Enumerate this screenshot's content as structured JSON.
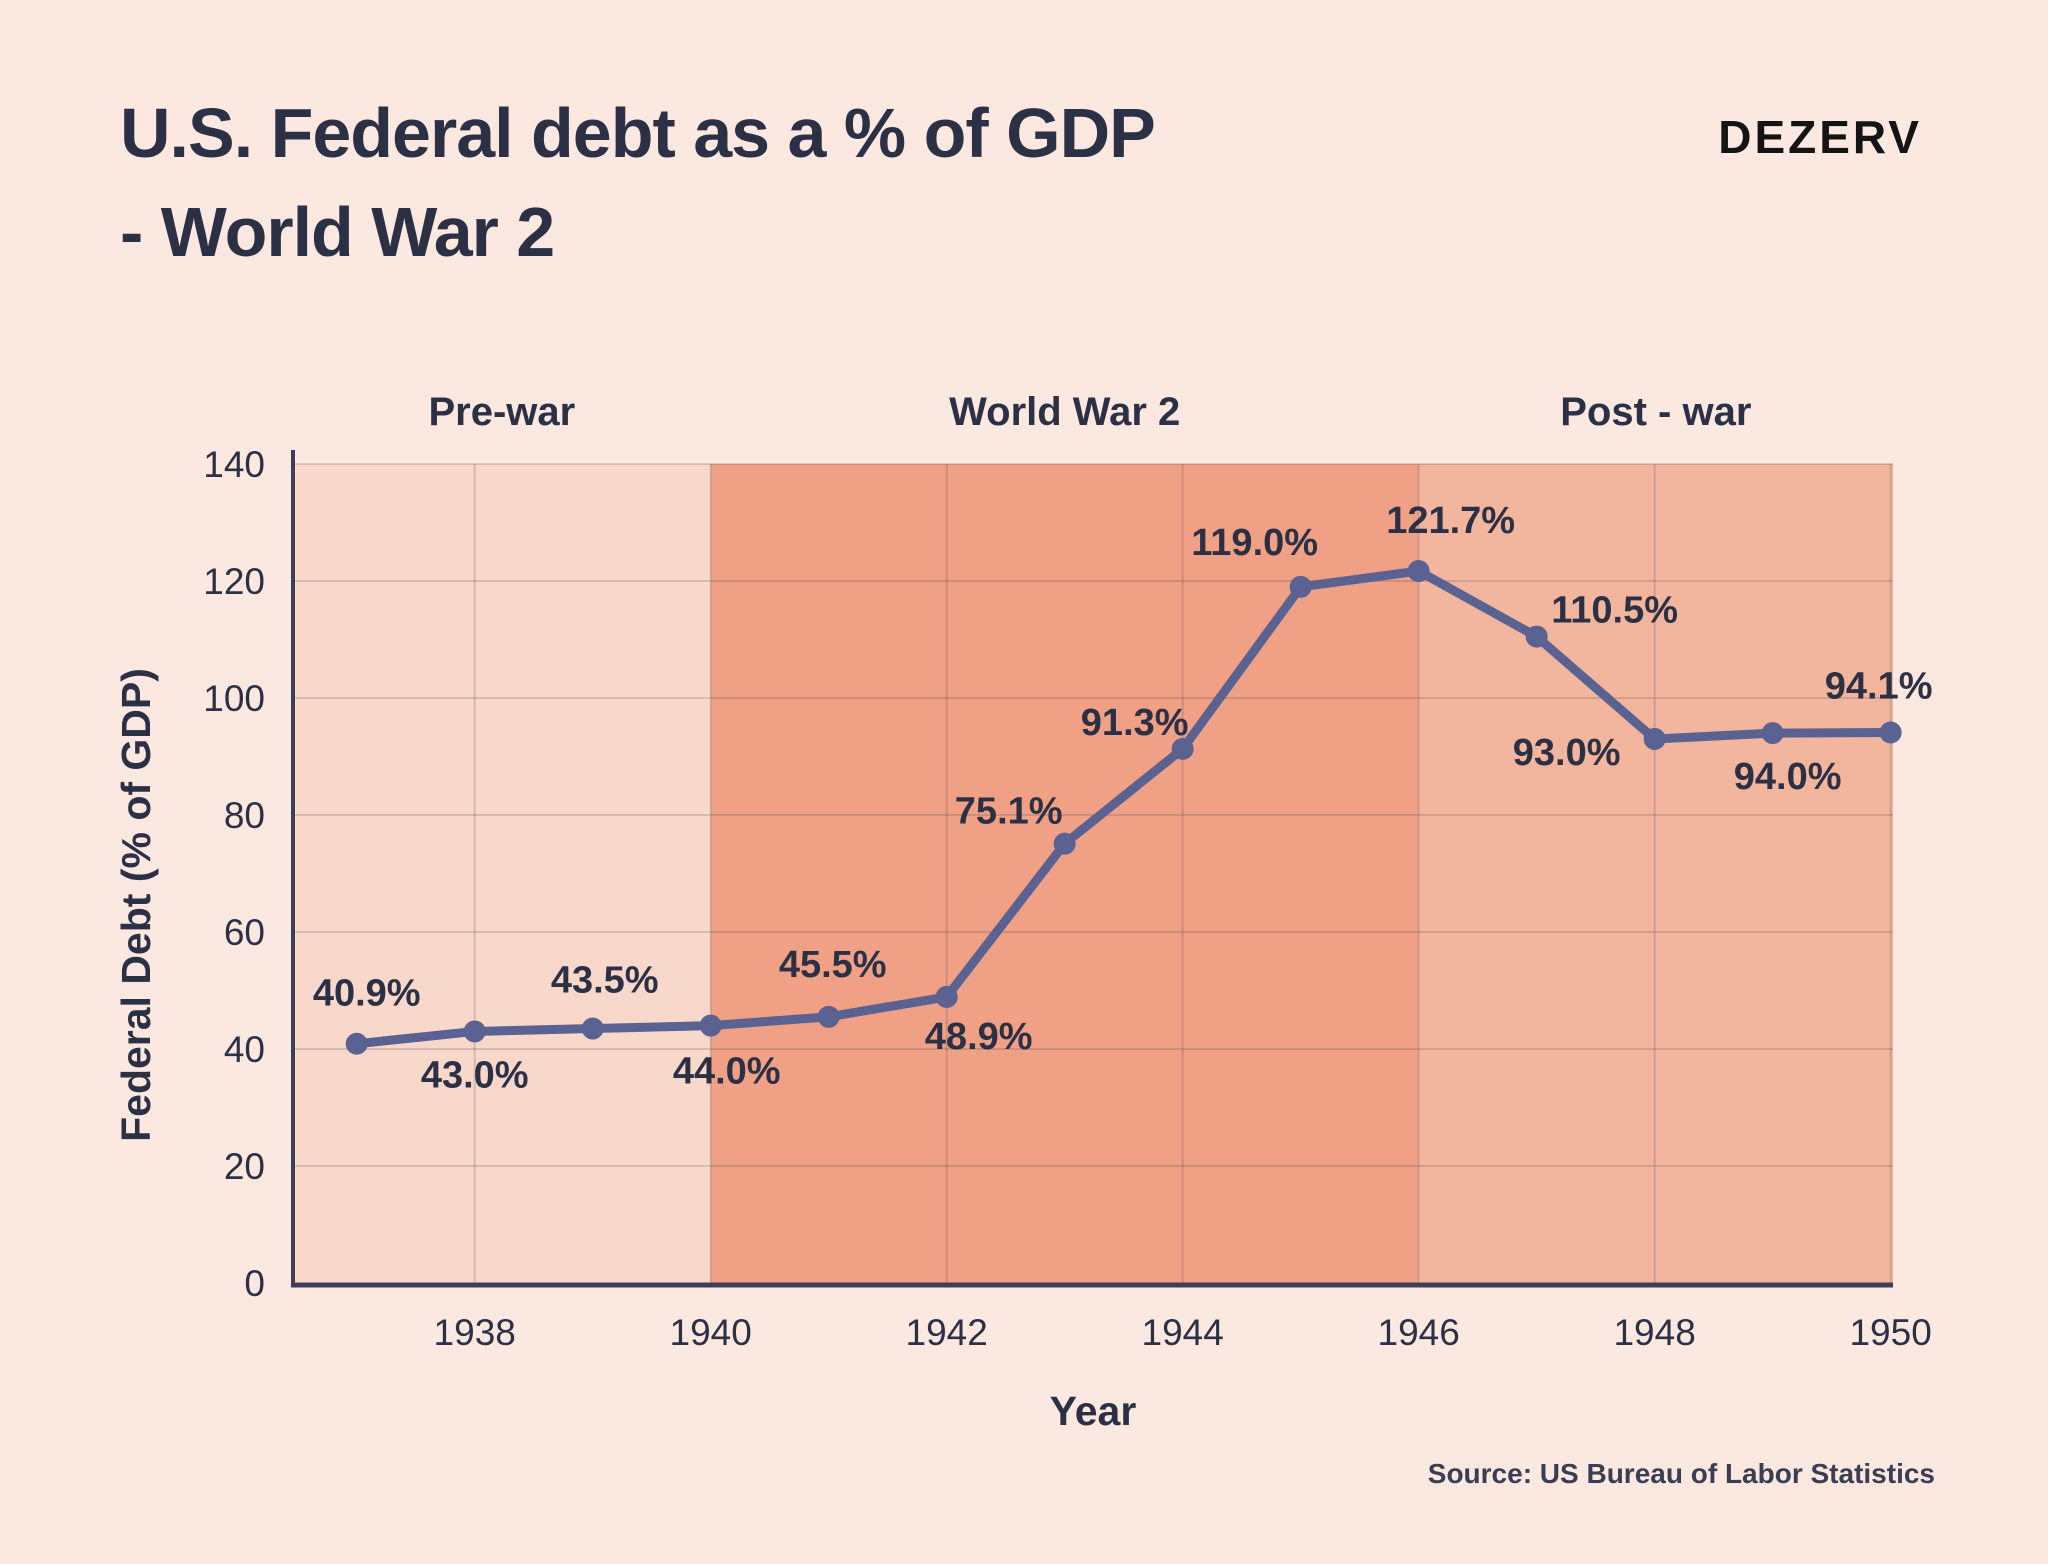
{
  "header": {
    "title_lines": [
      "U.S. Federal debt as a % of GDP",
      "- World War 2"
    ],
    "logo": "DEZERV"
  },
  "footer": {
    "source": "Source: US Bureau of Labor Statistics"
  },
  "chart_data": {
    "type": "line",
    "title": "U.S. Federal debt as a % of GDP - World War 2",
    "xlabel": "Year",
    "ylabel": "Federal Debt (% of GDP)",
    "x": [
      1937,
      1938,
      1939,
      1940,
      1941,
      1942,
      1943,
      1944,
      1945,
      1946,
      1947,
      1948,
      1949,
      1950
    ],
    "values": [
      40.9,
      43.0,
      43.5,
      44.0,
      45.5,
      48.9,
      75.1,
      91.3,
      119.0,
      121.7,
      110.5,
      93.0,
      94.0,
      94.1
    ],
    "point_labels": [
      "40.9%",
      "43.0%",
      "43.5%",
      "44.0%",
      "45.5%",
      "48.9%",
      "75.1%",
      "91.3%",
      "119.0%",
      "121.7%",
      "110.5%",
      "93.0%",
      "94.0%",
      "94.1%"
    ],
    "x_ticks": [
      1938,
      1940,
      1942,
      1944,
      1946,
      1948,
      1950
    ],
    "y_ticks": [
      0,
      20,
      40,
      60,
      80,
      100,
      120,
      140
    ],
    "xlim": [
      1936.46,
      1950.02
    ],
    "ylim": [
      0,
      140
    ],
    "grid": true,
    "legend": "none",
    "regions": [
      {
        "label": "Pre-war",
        "from": 1936.46,
        "to": 1940,
        "color": "#f8d8cb"
      },
      {
        "label": "World War 2",
        "from": 1940,
        "to": 1946,
        "color": "#efa085"
      },
      {
        "label": "Post - war",
        "from": 1946,
        "to": 1950.02,
        "color": "#f2b59d"
      }
    ],
    "colors": {
      "line": "#5a6292",
      "axis": "#3c3f55",
      "text": "#2c3045",
      "background": "#fbe8e0",
      "gridline": "rgba(94,76,88,0.22)"
    }
  }
}
